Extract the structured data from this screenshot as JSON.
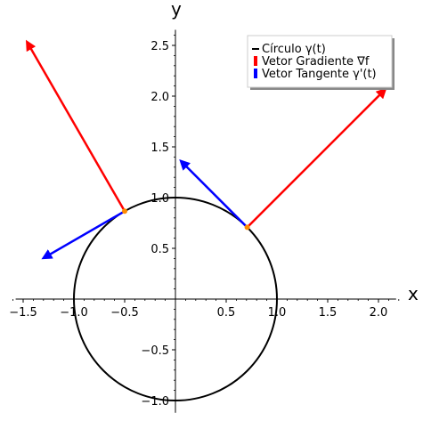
{
  "chart_data": {
    "type": "line",
    "xlabel": "x",
    "ylabel": "y",
    "xlim": [
      -1.6,
      2.2
    ],
    "ylim": [
      -1.05,
      2.68
    ],
    "x_ticks": [
      -1.5,
      -1.0,
      -0.5,
      0.5,
      1.0,
      1.5,
      2.0
    ],
    "x_tick_labels": [
      "−1.5",
      "−1.0",
      "−0.5",
      "0.5",
      "1.0",
      "1.5",
      "2.0"
    ],
    "y_ticks": [
      -1.0,
      -0.5,
      0.5,
      1.0,
      1.5,
      2.0,
      2.5
    ],
    "y_tick_labels": [
      "−1.0",
      "−0.5",
      "0.5",
      "1.0",
      "1.5",
      "2.0",
      "2.5"
    ],
    "grid": false,
    "legend_position": "top-right",
    "series": [
      {
        "name": "Círculo γ(t)",
        "kind": "circle",
        "center": [
          0,
          0
        ],
        "radius": 1,
        "color": "#000000"
      },
      {
        "name": "Vetor Gradiente ∇f",
        "kind": "arrows",
        "color": "#ff0000",
        "arrows": [
          {
            "from": [
              0.707,
              0.707
            ],
            "to": [
              2.12,
              2.12
            ]
          },
          {
            "from": [
              -0.5,
              0.866
            ],
            "to": [
              -1.5,
              2.6
            ]
          }
        ]
      },
      {
        "name": "Vetor Tangente γ'(t)",
        "kind": "arrows",
        "color": "#0000ff",
        "arrows": [
          {
            "from": [
              0.707,
              0.707
            ],
            "to": [
              0.0,
              1.414
            ]
          },
          {
            "from": [
              -0.5,
              0.866
            ],
            "to": [
              -1.366,
              0.366
            ]
          }
        ]
      }
    ],
    "points": {
      "color": "#ff8c00",
      "values": [
        [
          0.707,
          0.707
        ],
        [
          -0.5,
          0.866
        ]
      ]
    }
  }
}
